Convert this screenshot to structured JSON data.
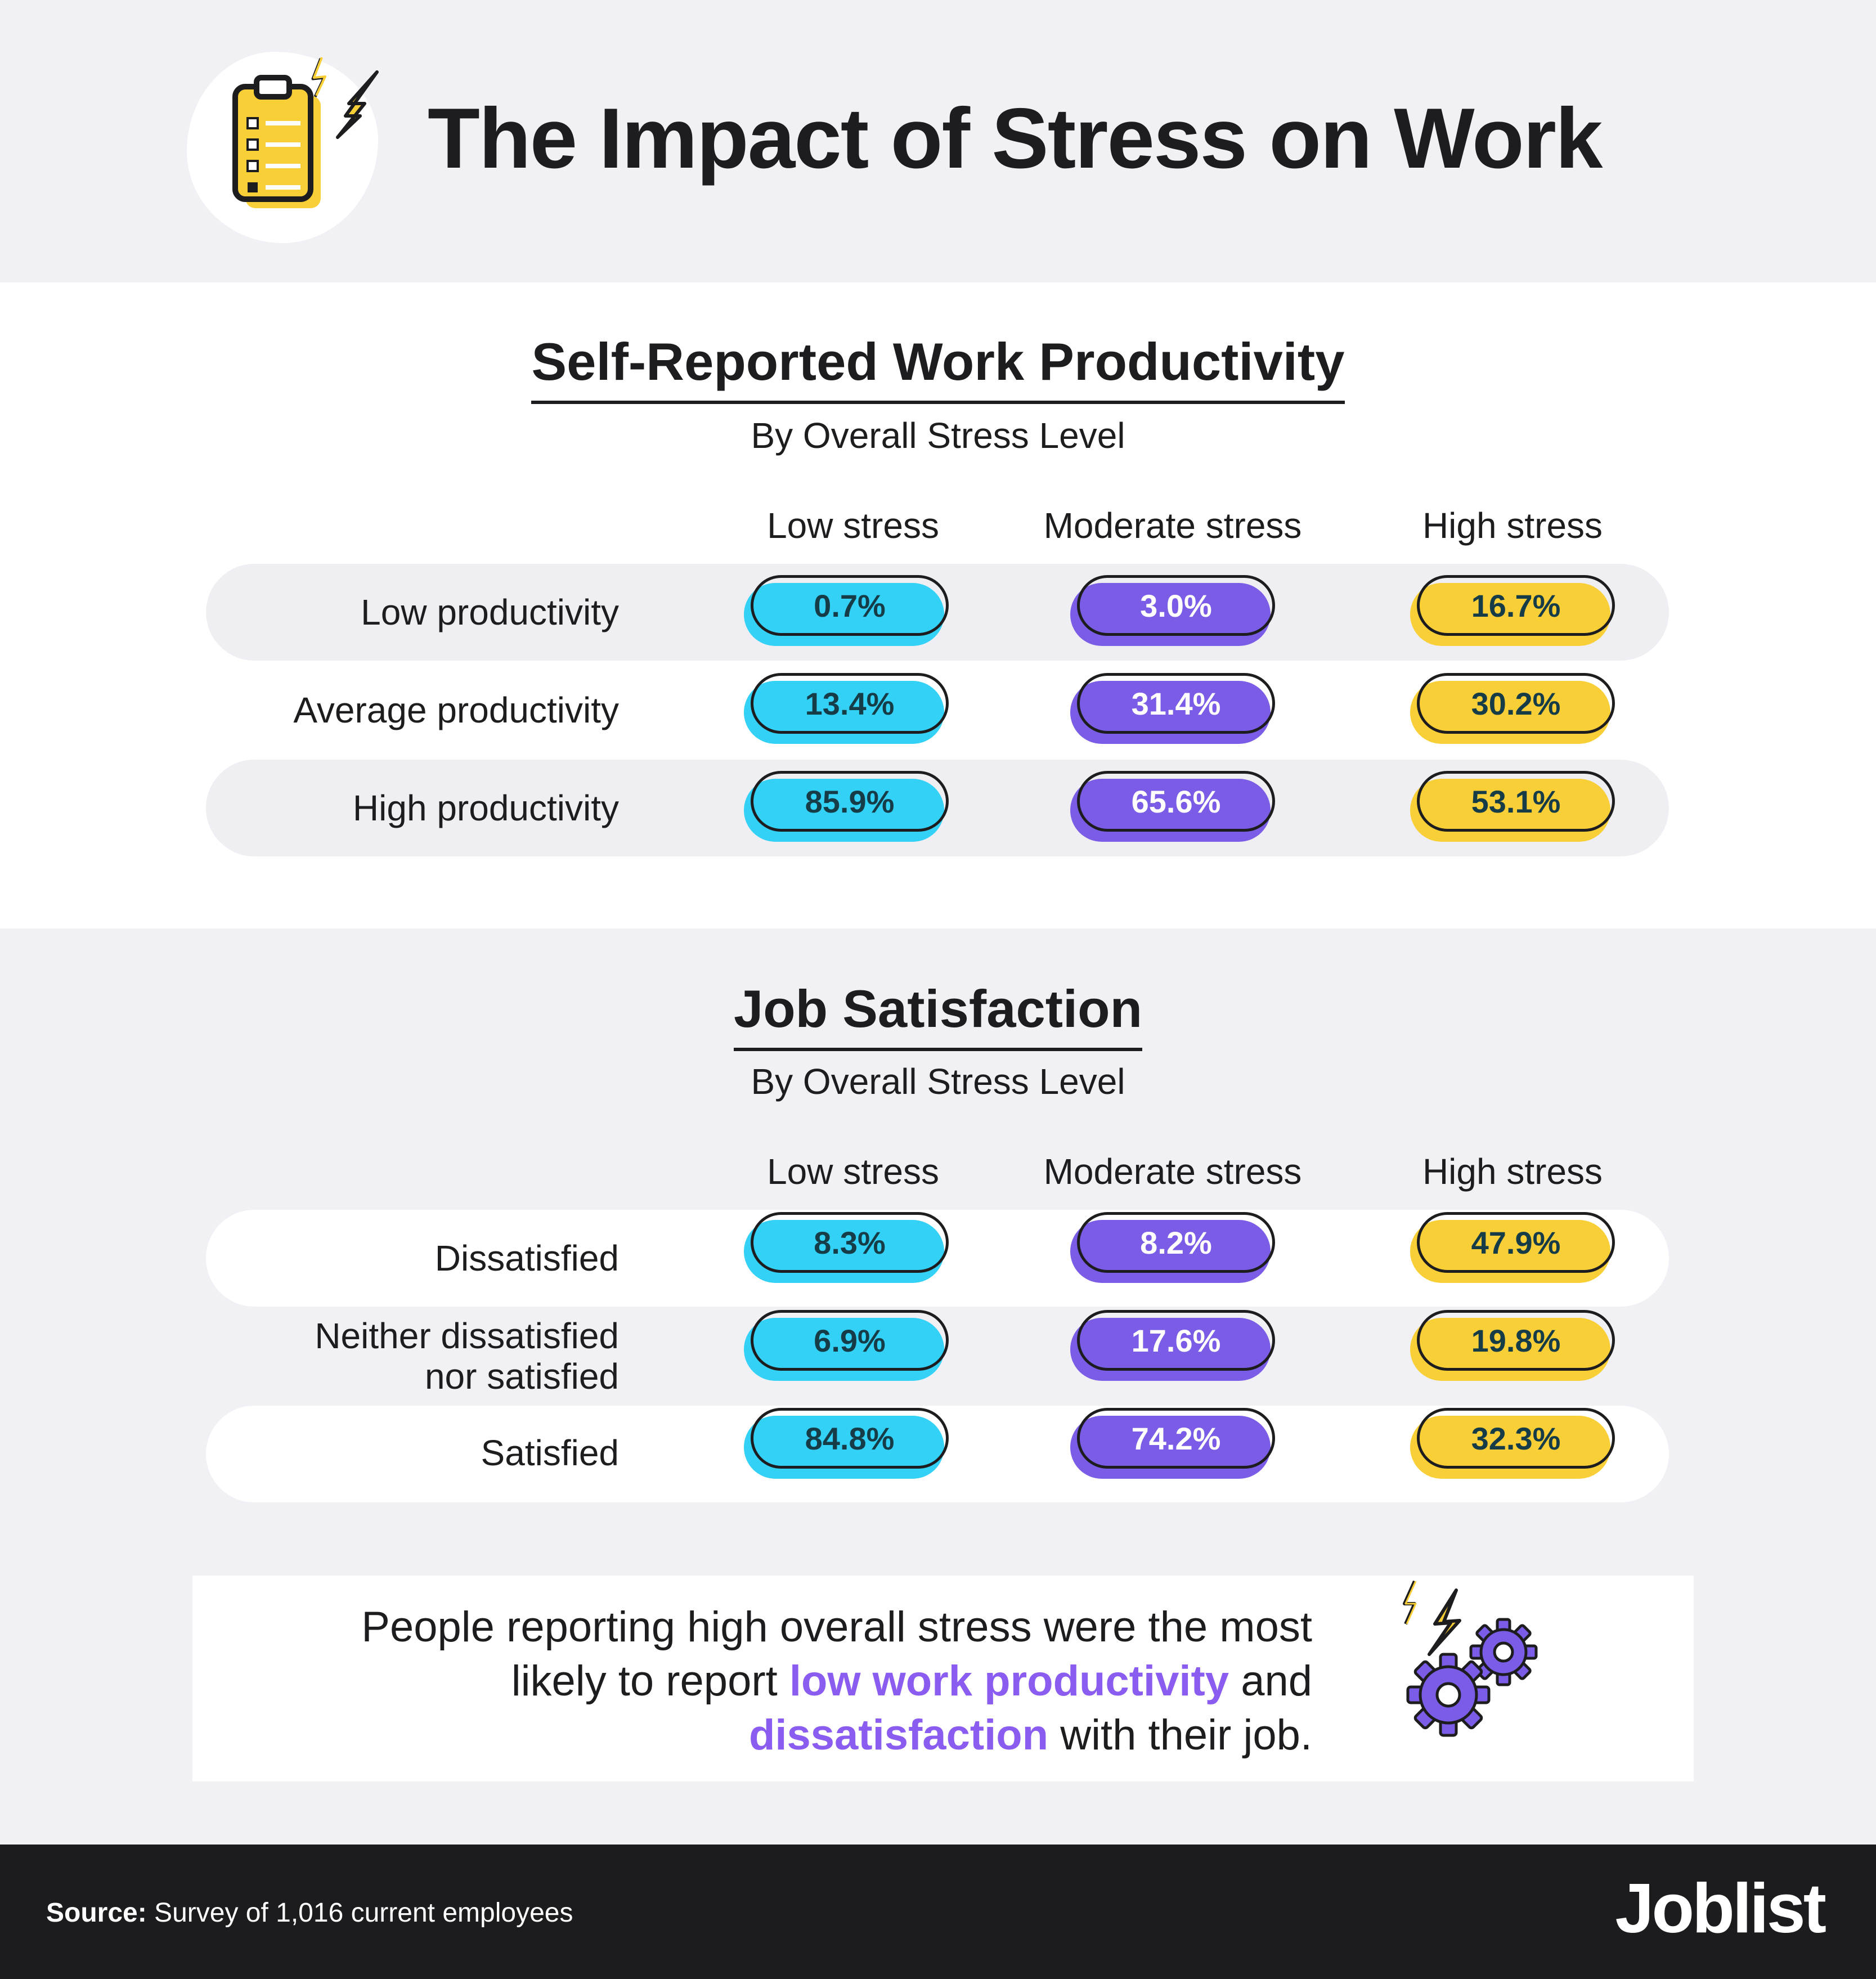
{
  "header": {
    "title": "The Impact of Stress on Work"
  },
  "chart_data": [
    {
      "type": "table",
      "title": "Self-Reported Work Productivity",
      "subtitle": "By Overall Stress Level",
      "columns": [
        "Low stress",
        "Moderate stress",
        "High stress"
      ],
      "rows": [
        {
          "label": "Low productivity",
          "values": [
            "0.7%",
            "3.0%",
            "16.7%"
          ]
        },
        {
          "label": "Average productivity",
          "values": [
            "13.4%",
            "31.4%",
            "30.2%"
          ]
        },
        {
          "label": "High productivity",
          "values": [
            "85.9%",
            "65.6%",
            "53.1%"
          ]
        }
      ],
      "colors": [
        "#33d1f5",
        "#7b5ce6",
        "#f9cf38"
      ]
    },
    {
      "type": "table",
      "title": "Job Satisfaction",
      "subtitle": "By Overall Stress Level",
      "columns": [
        "Low stress",
        "Moderate stress",
        "High stress"
      ],
      "rows": [
        {
          "label": "Dissatisfied",
          "values": [
            "8.3%",
            "8.2%",
            "47.9%"
          ]
        },
        {
          "label_line1": "Neither dissatisfied",
          "label_line2": "nor satisfied",
          "values": [
            "6.9%",
            "17.6%",
            "19.8%"
          ]
        },
        {
          "label": "Satisfied",
          "values": [
            "84.8%",
            "74.2%",
            "32.3%"
          ]
        }
      ],
      "colors": [
        "#33d1f5",
        "#7b5ce6",
        "#f9cf38"
      ]
    }
  ],
  "callout": {
    "line1": "People reporting high overall stress were the most",
    "line2_pre": "likely to report ",
    "line2_hl": "low work productivity",
    "line2_post": " and",
    "line3_hl": "dissatisfaction",
    "line3_post": " with their job.",
    "highlight_color": "#8a5cf0",
    "icon": "gears-lightning-icon"
  },
  "footer": {
    "source_label": "Source:",
    "source_text": " Survey of 1,016 current employees",
    "brand": "Joblist"
  },
  "icons": {
    "header": "clipboard-checklist-icon"
  }
}
